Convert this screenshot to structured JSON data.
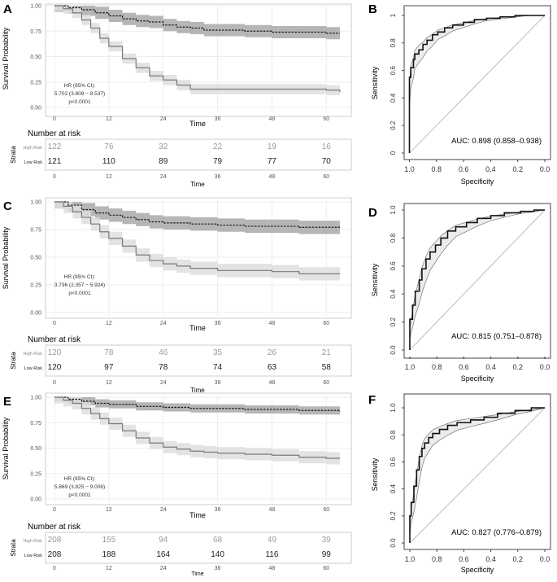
{
  "colors": {
    "low_line": "#1a1a1a",
    "high_line": "#7a7a7a",
    "low_band": "#a9a9a9",
    "high_band": "#dedede",
    "roc_band": "#ececec"
  },
  "axis_labels": {
    "km_y": "Survival Probability",
    "km_x": "Time",
    "risk_title": "Number at risk",
    "strata": "Strata",
    "roc_y": "Sensitivity",
    "roc_x": "Specificity"
  },
  "chart_data": [
    {
      "panel": "A",
      "type": "line",
      "xticks": [
        "0",
        "12",
        "24",
        "36",
        "48",
        "60"
      ],
      "yticks": [
        "0.00",
        "0.25",
        "0.50",
        "0.75",
        "1.00"
      ],
      "xlim": [
        0,
        63
      ],
      "ylim": [
        0,
        1
      ],
      "hr_title": "HR (95% CI):",
      "hr_value": "5.702 (3.809 − 8.537)",
      "p_value": "p<0.0001",
      "series": [
        {
          "name": "Low Risk",
          "style": "dashed",
          "x": [
            0,
            3,
            6,
            9,
            12,
            15,
            18,
            21,
            24,
            27,
            30,
            33,
            36,
            42,
            48,
            54,
            60,
            63
          ],
          "y": [
            1.0,
            0.98,
            0.96,
            0.93,
            0.9,
            0.87,
            0.85,
            0.84,
            0.81,
            0.79,
            0.78,
            0.76,
            0.76,
            0.75,
            0.74,
            0.74,
            0.73,
            0.73
          ],
          "band_half": 0.06
        },
        {
          "name": "High Risk",
          "style": "solid",
          "x": [
            0,
            2,
            4,
            6,
            8,
            10,
            12,
            15,
            18,
            21,
            24,
            27,
            30,
            36,
            48,
            60,
            63
          ],
          "y": [
            1.0,
            0.97,
            0.93,
            0.86,
            0.78,
            0.68,
            0.6,
            0.48,
            0.39,
            0.31,
            0.27,
            0.22,
            0.18,
            0.18,
            0.18,
            0.17,
            0.15
          ],
          "band_half": 0.05
        }
      ],
      "risk_table": [
        {
          "stratum": "High Risk",
          "counts": [
            "122",
            "76",
            "32",
            "22",
            "19",
            "16"
          ]
        },
        {
          "stratum": "Low Risk",
          "counts": [
            "121",
            "110",
            "89",
            "79",
            "77",
            "70"
          ]
        }
      ]
    },
    {
      "panel": "B",
      "type": "line",
      "subtype": "roc",
      "xticks": [
        "1.0",
        "0.8",
        "0.6",
        "0.4",
        "0.2",
        "0.0"
      ],
      "yticks": [
        "0",
        "0.2",
        "0.4",
        "0.6",
        "0.8",
        "1"
      ],
      "auc_label": "AUC: 0.898 (0.858–0.938)",
      "roc": {
        "specificity": [
          1.0,
          1.0,
          0.99,
          0.97,
          0.96,
          0.93,
          0.9,
          0.87,
          0.83,
          0.79,
          0.74,
          0.68,
          0.6,
          0.52,
          0.43,
          0.33,
          0.22,
          0.12,
          0.05,
          0.0
        ],
        "sensitivity": [
          0.0,
          0.42,
          0.55,
          0.62,
          0.68,
          0.72,
          0.75,
          0.79,
          0.82,
          0.86,
          0.88,
          0.91,
          0.93,
          0.95,
          0.97,
          0.98,
          0.99,
          1.0,
          1.0,
          1.0
        ],
        "band_half": 0.08
      }
    },
    {
      "panel": "C",
      "type": "line",
      "xticks": [
        "0",
        "12",
        "24",
        "36",
        "48",
        "60"
      ],
      "yticks": [
        "0.00",
        "0.25",
        "0.50",
        "0.75",
        "1.00"
      ],
      "xlim": [
        0,
        63
      ],
      "ylim": [
        0,
        1
      ],
      "hr_title": "HR (95% CI):",
      "hr_value": "3.736 (2.357 − 5.924)",
      "p_value": "p<0.0001",
      "series": [
        {
          "name": "Low Risk",
          "style": "dashed",
          "x": [
            0,
            3,
            6,
            9,
            12,
            15,
            18,
            21,
            24,
            30,
            36,
            42,
            48,
            54,
            60,
            63
          ],
          "y": [
            1.0,
            0.97,
            0.93,
            0.9,
            0.88,
            0.86,
            0.84,
            0.82,
            0.81,
            0.8,
            0.79,
            0.78,
            0.78,
            0.77,
            0.77,
            0.77
          ],
          "band_half": 0.06
        },
        {
          "name": "High Risk",
          "style": "solid",
          "x": [
            0,
            2,
            4,
            6,
            8,
            10,
            12,
            15,
            18,
            21,
            24,
            27,
            30,
            36,
            42,
            48,
            54,
            60,
            63
          ],
          "y": [
            1.0,
            0.96,
            0.91,
            0.86,
            0.8,
            0.73,
            0.67,
            0.6,
            0.52,
            0.47,
            0.44,
            0.42,
            0.4,
            0.38,
            0.38,
            0.37,
            0.35,
            0.35,
            0.35
          ],
          "band_half": 0.06
        }
      ],
      "risk_table": [
        {
          "stratum": "High Risk",
          "counts": [
            "120",
            "78",
            "46",
            "35",
            "26",
            "21"
          ]
        },
        {
          "stratum": "Low Risk",
          "counts": [
            "120",
            "97",
            "78",
            "74",
            "63",
            "58"
          ]
        }
      ]
    },
    {
      "panel": "D",
      "type": "line",
      "subtype": "roc",
      "xticks": [
        "1.0",
        "0.8",
        "0.6",
        "0.4",
        "0.2",
        "0.0"
      ],
      "yticks": [
        "0.0",
        "0.2",
        "0.4",
        "0.6",
        "0.8",
        "1.0"
      ],
      "auc_label": "AUC: 0.815 (0.751–0.878)",
      "roc": {
        "specificity": [
          1.0,
          1.0,
          0.98,
          0.96,
          0.93,
          0.91,
          0.88,
          0.85,
          0.81,
          0.77,
          0.72,
          0.66,
          0.58,
          0.5,
          0.4,
          0.3,
          0.18,
          0.08,
          0.0
        ],
        "sensitivity": [
          0.0,
          0.12,
          0.22,
          0.32,
          0.42,
          0.5,
          0.58,
          0.65,
          0.7,
          0.75,
          0.8,
          0.85,
          0.88,
          0.91,
          0.94,
          0.96,
          0.98,
          0.99,
          1.0
        ],
        "band_half": 0.09
      }
    },
    {
      "panel": "E",
      "type": "line",
      "xticks": [
        "0",
        "12",
        "24",
        "36",
        "48",
        "60"
      ],
      "yticks": [
        "0.00",
        "0.25",
        "0.50",
        "0.75",
        "1.00"
      ],
      "xlim": [
        0,
        63
      ],
      "ylim": [
        0,
        1
      ],
      "hr_title": "HR (95% CI):",
      "hr_value": "5.869 (3.825 − 9.006)",
      "p_value": "p<0.0001",
      "series": [
        {
          "name": "Low Risk",
          "style": "dashed",
          "x": [
            0,
            3,
            6,
            9,
            12,
            18,
            24,
            30,
            36,
            42,
            48,
            54,
            60,
            63
          ],
          "y": [
            1.0,
            0.98,
            0.96,
            0.94,
            0.93,
            0.91,
            0.9,
            0.89,
            0.89,
            0.88,
            0.88,
            0.87,
            0.87,
            0.86
          ],
          "band_half": 0.04
        },
        {
          "name": "High Risk",
          "style": "solid",
          "x": [
            0,
            2,
            4,
            6,
            8,
            10,
            12,
            15,
            18,
            21,
            24,
            27,
            30,
            33,
            36,
            42,
            48,
            54,
            60,
            63
          ],
          "y": [
            1.0,
            0.97,
            0.94,
            0.89,
            0.84,
            0.79,
            0.74,
            0.67,
            0.6,
            0.55,
            0.51,
            0.49,
            0.47,
            0.46,
            0.45,
            0.44,
            0.43,
            0.41,
            0.4,
            0.4
          ],
          "band_half": 0.06
        }
      ],
      "risk_table": [
        {
          "stratum": "High Risk",
          "counts": [
            "208",
            "155",
            "94",
            "68",
            "49",
            "39"
          ]
        },
        {
          "stratum": "Low Risk",
          "counts": [
            "208",
            "188",
            "164",
            "140",
            "116",
            "99"
          ]
        }
      ]
    },
    {
      "panel": "F",
      "type": "line",
      "subtype": "roc",
      "xticks": [
        "1.0",
        "0.8",
        "0.6",
        "0.4",
        "0.2",
        "0.0"
      ],
      "yticks": [
        "0.0",
        "0.2",
        "0.4",
        "0.6",
        "0.8",
        "1.0"
      ],
      "auc_label": "AUC: 0.827 (0.776–0.879)",
      "roc": {
        "specificity": [
          1.0,
          1.0,
          0.99,
          0.97,
          0.95,
          0.93,
          0.91,
          0.89,
          0.86,
          0.83,
          0.78,
          0.72,
          0.65,
          0.55,
          0.45,
          0.35,
          0.22,
          0.1,
          0.0
        ],
        "sensitivity": [
          0.0,
          0.1,
          0.2,
          0.3,
          0.42,
          0.54,
          0.64,
          0.7,
          0.74,
          0.78,
          0.81,
          0.84,
          0.87,
          0.89,
          0.91,
          0.93,
          0.96,
          0.98,
          1.0
        ],
        "band_half": 0.09
      }
    }
  ]
}
